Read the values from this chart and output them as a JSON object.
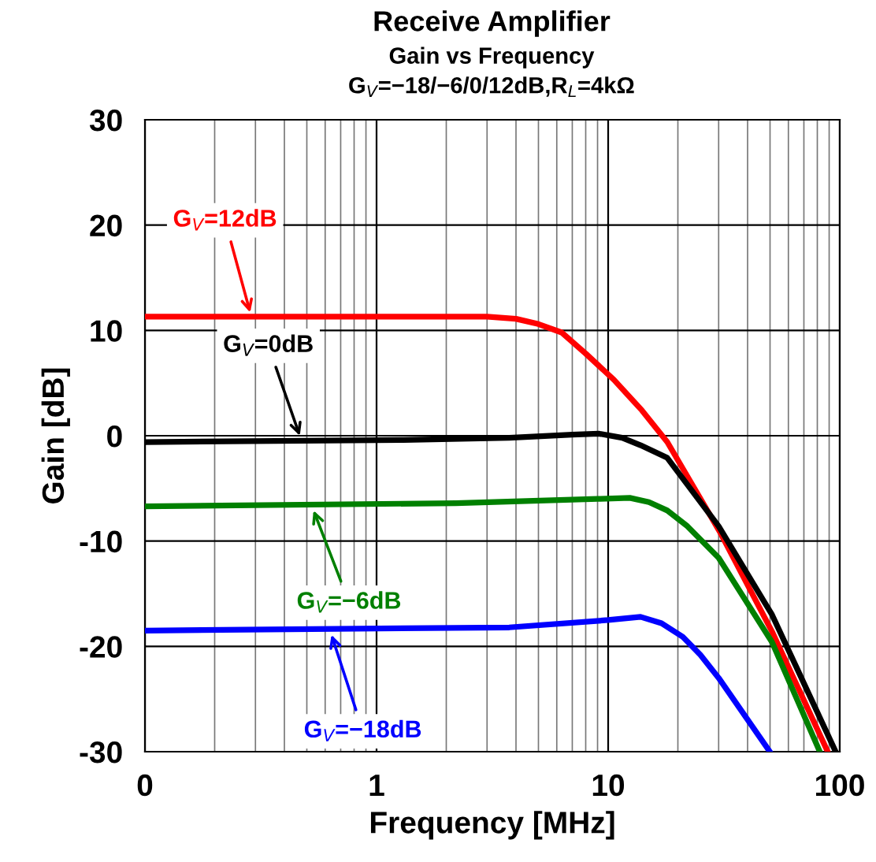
{
  "chart_data": {
    "type": "line",
    "title": "Receive Amplifier",
    "subtitle": "Gain vs Frequency\nG$_{V}$=−18/−6/0/12dB,R$_{L}$=4kΩ",
    "xlabel": "Frequency [MHz]",
    "ylabel": "Gain [dB]",
    "log": "x",
    "xlim": [
      0.1,
      100
    ],
    "xticks": [
      {
        "value": 0.1,
        "label": "0"
      },
      1,
      10,
      100
    ],
    "ylim": [
      -30,
      30
    ],
    "yticks": [
      -30,
      -20,
      -10,
      0,
      10,
      20,
      30
    ],
    "grid": true,
    "legend": false,
    "marker": "none",
    "line_style": "solid",
    "series": [
      {
        "color": "#ff0000",
        "x": [
          0.1,
          1,
          3.0,
          4.0,
          5.0,
          6.3,
          8.0,
          10.6,
          14,
          18,
          30.3,
          51,
          88.7
        ],
        "values": [
          11.3,
          11.3,
          11.3,
          11.1,
          10.6,
          9.8,
          7.8,
          5.3,
          2.4,
          -0.6,
          -9.1,
          -18.6,
          -30
        ]
      },
      {
        "color": "#000000",
        "x": [
          0.1,
          1.31,
          3.74,
          7.0,
          9.1,
          11.5,
          13.8,
          18,
          30,
          51,
          96
        ],
        "values": [
          -0.6,
          -0.4,
          -0.2,
          0.1,
          0.2,
          -0.2,
          -0.9,
          -2.1,
          -8.6,
          -17,
          -30
        ]
      },
      {
        "color": "#008000",
        "x": [
          0.1,
          2.2,
          9.0,
          12.4,
          15,
          18,
          22,
          30,
          51,
          82
        ],
        "values": [
          -6.7,
          -6.4,
          -6.0,
          -5.9,
          -6.3,
          -7.1,
          -8.6,
          -11.6,
          -19.6,
          -30
        ]
      },
      {
        "color": "#0000ff",
        "x": [
          0.1,
          3.74,
          10,
          13.8,
          17,
          21,
          25,
          30,
          49.9
        ],
        "values": [
          -18.5,
          -18.2,
          -17.5,
          -17.2,
          -17.8,
          -19.1,
          -20.8,
          -23,
          -30
        ]
      }
    ],
    "annotations": [
      {
        "text": "G$_{V}$=12dB",
        "x": 0.288,
        "y": 11.3
      },
      {
        "text": "G$_{V}$=0dB",
        "x": 0.473,
        "y": -0.4
      },
      {
        "text": "G$_{V}$=−6dB",
        "x": 0.526,
        "y": -6.7
      },
      {
        "text": "G$_{V}$=−18dB",
        "x": 0.63,
        "y": -18.5
      }
    ]
  }
}
